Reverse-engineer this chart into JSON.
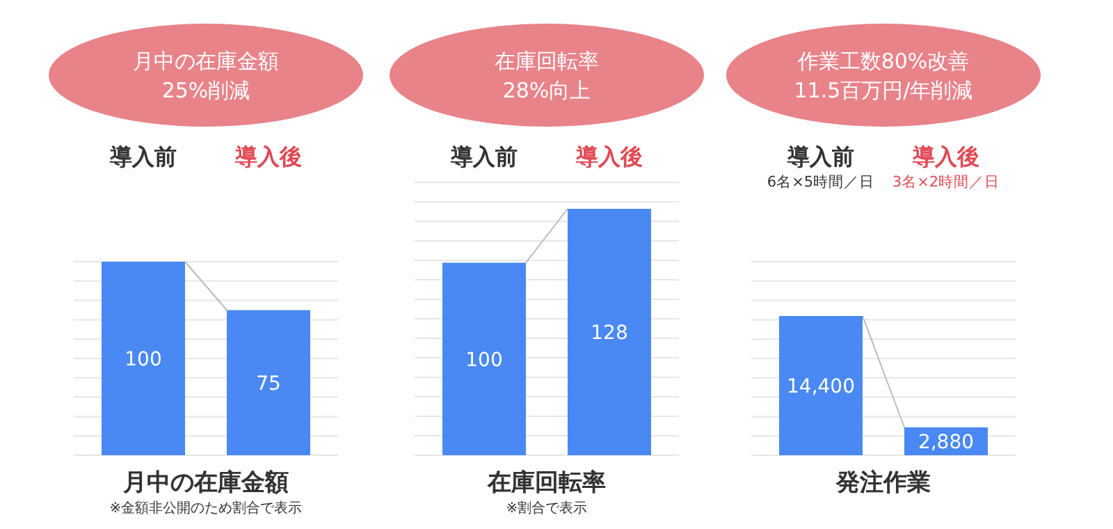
{
  "chart_data": [
    {
      "type": "bar",
      "title": "月中の在庫金額",
      "subtitle": "25%削減",
      "categories": [
        "導入前",
        "導入後"
      ],
      "values": [
        100,
        75
      ],
      "color": "#4a89f3",
      "xlabel": "月中の在庫金額",
      "annotations": [
        "※金額非公開のため割合で表示"
      ],
      "data_labels": true,
      "grid": "y"
    },
    {
      "type": "bar",
      "title": "在庫回転率",
      "subtitle": "28%向上",
      "categories": [
        "導入前",
        "導入後"
      ],
      "values": [
        100,
        128
      ],
      "color": "#4a89f3",
      "xlabel": "在庫回転率",
      "annotations": [
        "※割合で表示"
      ],
      "data_labels": true,
      "grid": "y"
    },
    {
      "type": "bar",
      "title": "作業工数80%改善",
      "subtitle": "11.5百万円/年削減",
      "categories": [
        "導入前",
        "導入後"
      ],
      "values": [
        14400,
        2880
      ],
      "value_labels": [
        "14,400",
        "2,880"
      ],
      "color": "#4a89f3",
      "xlabel": "発注作業",
      "annotations": [
        "6名×5時間／日",
        "3名×2時間／日"
      ],
      "grid": "y"
    }
  ]
}
